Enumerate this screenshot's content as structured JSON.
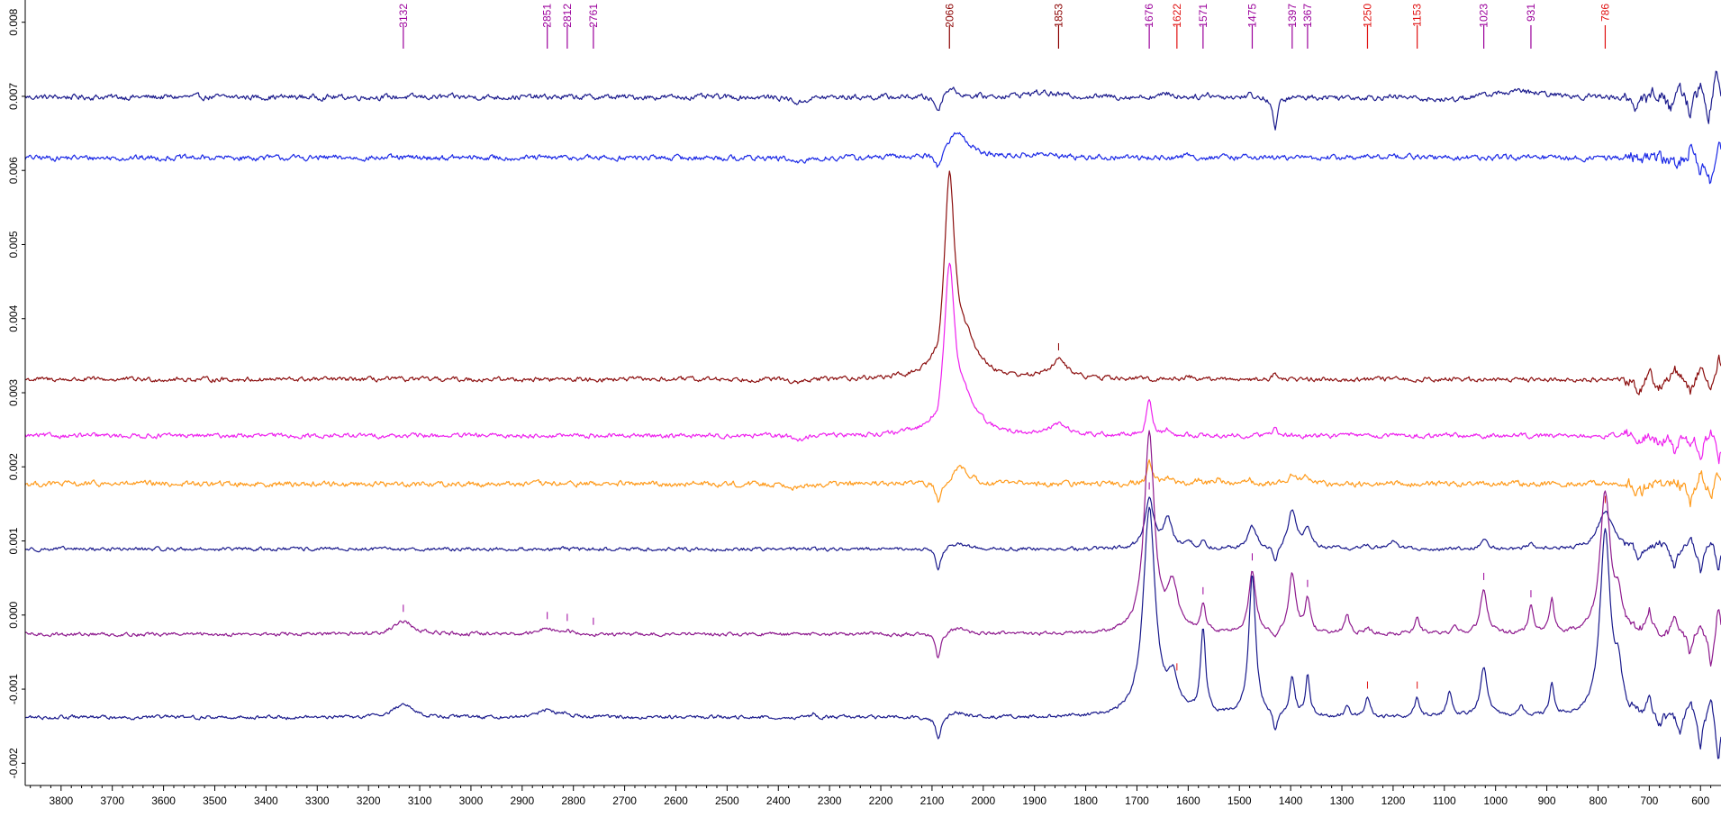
{
  "chart_data": {
    "type": "line",
    "title": "",
    "xlabel": "",
    "ylabel": "",
    "xlim": [
      3870,
      560
    ],
    "ylim": [
      -0.0023,
      0.0083
    ],
    "x_ticks": [
      3800,
      3700,
      3600,
      3500,
      3400,
      3300,
      3200,
      3100,
      3000,
      2900,
      2800,
      2700,
      2600,
      2500,
      2400,
      2300,
      2200,
      2100,
      2000,
      1900,
      1800,
      1700,
      1600,
      1500,
      1400,
      1300,
      1200,
      1100,
      1000,
      900,
      800,
      700,
      600
    ],
    "y_ticks": [
      0.008,
      0.007,
      0.006,
      0.005,
      0.004,
      0.003,
      0.002,
      0.001,
      0.0,
      -0.001,
      -0.002
    ],
    "y_tick_labels": [
      "0.008",
      "0.007",
      "0.006",
      "0.005",
      "0.004",
      "0.003",
      "0.002",
      "0.001",
      "0.000",
      "-0.001",
      "-0.002"
    ],
    "x_direction": "reversed",
    "legend": "none",
    "grid": false,
    "peak_labels": [
      {
        "x": 3132,
        "label": "3132",
        "color": "#9b009b"
      },
      {
        "x": 2851,
        "label": "2851",
        "color": "#9b009b"
      },
      {
        "x": 2812,
        "label": "2812",
        "color": "#9b009b"
      },
      {
        "x": 2761,
        "label": "2761",
        "color": "#9b009b"
      },
      {
        "x": 2066,
        "label": "2066",
        "color": "#8b0000"
      },
      {
        "x": 1853,
        "label": "1853",
        "color": "#8b0000"
      },
      {
        "x": 1676,
        "label": "1676",
        "color": "#9b009b"
      },
      {
        "x": 1622,
        "label": "1622",
        "color": "#e01010"
      },
      {
        "x": 1571,
        "label": "1571",
        "color": "#9b009b"
      },
      {
        "x": 1475,
        "label": "1475",
        "color": "#9b009b"
      },
      {
        "x": 1397,
        "label": "1397",
        "color": "#9b009b"
      },
      {
        "x": 1367,
        "label": "1367",
        "color": "#9b009b"
      },
      {
        "x": 1250,
        "label": "1250",
        "color": "#e01010"
      },
      {
        "x": 1153,
        "label": "1153",
        "color": "#e01010"
      },
      {
        "x": 1023,
        "label": "1023",
        "color": "#9b009b"
      },
      {
        "x": 931,
        "label": "931",
        "color": "#9b009b"
      },
      {
        "x": 786,
        "label": "786",
        "color": "#e01010"
      }
    ],
    "series": [
      {
        "color": "#1a1a8c",
        "baseline": 0.00699,
        "noise": 3e-05,
        "features": [
          [
            2360,
            -8e-05,
            14
          ],
          [
            2088,
            -0.00022,
            8
          ],
          [
            2066,
            0.00014,
            16
          ],
          [
            1890,
            6e-05,
            40
          ],
          [
            1430,
            -0.00045,
            5
          ],
          [
            1640,
            5e-05,
            10
          ],
          [
            1560,
            4e-05,
            8
          ],
          [
            1480,
            4e-05,
            6
          ],
          [
            1100,
            -5e-05,
            40
          ],
          [
            960,
            8e-05,
            60
          ],
          [
            720,
            -0.00012,
            12
          ],
          [
            690,
            0.0001,
            8
          ],
          [
            660,
            -0.00015,
            8
          ],
          [
            640,
            0.00018,
            6
          ],
          [
            620,
            -0.00022,
            6
          ],
          [
            600,
            0.00025,
            5
          ],
          [
            585,
            -0.00045,
            5
          ],
          [
            570,
            0.0004,
            5
          ]
        ]
      },
      {
        "color": "#1a28e6",
        "baseline": 0.00617,
        "noise": 3e-05,
        "features": [
          [
            2360,
            -8e-05,
            14
          ],
          [
            2088,
            -0.00022,
            8
          ],
          [
            2050,
            0.00035,
            25
          ],
          [
            1890,
            4e-05,
            40
          ],
          [
            1600,
            4e-05,
            8
          ],
          [
            1480,
            4e-05,
            6
          ],
          [
            1200,
            3e-05,
            30
          ],
          [
            700,
            6e-05,
            10
          ],
          [
            650,
            -0.00012,
            8
          ],
          [
            620,
            0.00016,
            6
          ],
          [
            600,
            -0.0002,
            5
          ],
          [
            580,
            -0.0004,
            5
          ],
          [
            565,
            0.0002,
            5
          ]
        ]
      },
      {
        "color": "#8b0e0e",
        "baseline": 0.00318,
        "noise": 2.5e-05,
        "features": [
          [
            2360,
            -6e-05,
            14
          ],
          [
            2088,
            -0.00018,
            6
          ],
          [
            2066,
            0.0026,
            12
          ],
          [
            2035,
            0.00045,
            30
          ],
          [
            1853,
            0.00025,
            20
          ],
          [
            1430,
            8e-05,
            5
          ],
          [
            1600,
            4e-05,
            8
          ],
          [
            720,
            -0.00015,
            8
          ],
          [
            700,
            0.00012,
            6
          ],
          [
            680,
            -0.0001,
            6
          ],
          [
            650,
            0.00015,
            6
          ],
          [
            620,
            -0.0002,
            5
          ],
          [
            600,
            0.0002,
            5
          ],
          [
            580,
            -0.00025,
            5
          ],
          [
            565,
            0.0003,
            5
          ]
        ]
      },
      {
        "color": "#ee22ee",
        "baseline": 0.00242,
        "noise": 2.5e-05,
        "features": [
          [
            2360,
            -6e-05,
            14
          ],
          [
            2088,
            -0.00018,
            6
          ],
          [
            2066,
            0.00215,
            12
          ],
          [
            2035,
            0.0004,
            30
          ],
          [
            1853,
            0.00015,
            20
          ],
          [
            1676,
            0.0005,
            6
          ],
          [
            1640,
            8e-05,
            6
          ],
          [
            1430,
            0.0001,
            5
          ],
          [
            750,
            6e-05,
            10
          ],
          [
            720,
            -0.00012,
            8
          ],
          [
            680,
            -0.0001,
            6
          ],
          [
            650,
            -0.0002,
            6
          ],
          [
            620,
            -0.00015,
            5
          ],
          [
            600,
            -0.0003,
            5
          ],
          [
            580,
            0.00015,
            5
          ],
          [
            565,
            -0.0004,
            5
          ]
        ]
      },
      {
        "color": "#ff9a1a",
        "baseline": 0.00177,
        "noise": 3e-05,
        "features": [
          [
            2360,
            -6e-05,
            14
          ],
          [
            2088,
            -0.00028,
            6
          ],
          [
            2045,
            0.00022,
            20
          ],
          [
            1676,
            0.00028,
            6
          ],
          [
            1640,
            0.0001,
            8
          ],
          [
            1580,
            6e-05,
            6
          ],
          [
            1540,
            7e-05,
            6
          ],
          [
            1480,
            6e-05,
            6
          ],
          [
            1397,
            0.00012,
            8
          ],
          [
            1367,
            0.0001,
            8
          ],
          [
            720,
            -0.00012,
            8
          ],
          [
            680,
            -8e-05,
            6
          ],
          [
            650,
            0.0001,
            6
          ],
          [
            620,
            -0.00025,
            5
          ],
          [
            600,
            0.00018,
            5
          ],
          [
            580,
            -0.00025,
            5
          ],
          [
            565,
            0.0002,
            5
          ]
        ]
      },
      {
        "color": "#1a1a8c",
        "baseline": 0.00089,
        "noise": 2e-05,
        "features": [
          [
            2088,
            -0.0003,
            6
          ],
          [
            2050,
            8e-05,
            20
          ],
          [
            1676,
            0.00065,
            10
          ],
          [
            1640,
            0.0004,
            10
          ],
          [
            1600,
            0.0001,
            8
          ],
          [
            1571,
            0.0001,
            6
          ],
          [
            1475,
            0.0003,
            10
          ],
          [
            1430,
            -0.00022,
            5
          ],
          [
            1397,
            0.0005,
            10
          ],
          [
            1367,
            0.00025,
            8
          ],
          [
            1250,
            6e-05,
            8
          ],
          [
            1200,
            0.00012,
            8
          ],
          [
            1023,
            0.00012,
            8
          ],
          [
            931,
            8e-05,
            6
          ],
          [
            786,
            0.0005,
            18
          ],
          [
            720,
            -0.00012,
            8
          ],
          [
            680,
            8e-05,
            6
          ],
          [
            650,
            -0.00025,
            6
          ],
          [
            620,
            0.00018,
            5
          ],
          [
            600,
            -0.00035,
            5
          ],
          [
            580,
            0.00015,
            5
          ],
          [
            565,
            -0.00025,
            5
          ]
        ]
      },
      {
        "color": "#8e1a8e",
        "baseline": -0.00026,
        "noise": 2e-05,
        "features": [
          [
            3132,
            0.00018,
            22
          ],
          [
            2851,
            8e-05,
            20
          ],
          [
            2812,
            4e-05,
            8
          ],
          [
            2088,
            -0.00035,
            6
          ],
          [
            2050,
            8e-05,
            20
          ],
          [
            1676,
            0.0027,
            12
          ],
          [
            1630,
            0.0006,
            12
          ],
          [
            1571,
            0.00035,
            6
          ],
          [
            1475,
            0.00085,
            8
          ],
          [
            1430,
            -0.00012,
            5
          ],
          [
            1397,
            0.0008,
            8
          ],
          [
            1367,
            0.00045,
            6
          ],
          [
            1290,
            0.00025,
            6
          ],
          [
            1250,
            8e-05,
            6
          ],
          [
            1153,
            0.00022,
            6
          ],
          [
            1080,
            8e-05,
            6
          ],
          [
            1023,
            0.0006,
            8
          ],
          [
            931,
            0.00035,
            6
          ],
          [
            890,
            0.00045,
            5
          ],
          [
            786,
            0.0019,
            12
          ],
          [
            760,
            0.0004,
            8
          ],
          [
            700,
            0.0003,
            6
          ],
          [
            680,
            -0.00015,
            6
          ],
          [
            650,
            0.00025,
            5
          ],
          [
            620,
            -0.0003,
            5
          ],
          [
            600,
            0.0002,
            5
          ],
          [
            580,
            -0.0005,
            5
          ],
          [
            565,
            0.0004,
            5
          ]
        ]
      },
      {
        "color": "#1a1a8c",
        "baseline": -0.00138,
        "noise": 2e-05,
        "features": [
          [
            3132,
            0.00018,
            22
          ],
          [
            2851,
            0.0001,
            20
          ],
          [
            2812,
            5e-05,
            8
          ],
          [
            2330,
            5e-05,
            5
          ],
          [
            2088,
            -0.0003,
            6
          ],
          [
            2050,
            6e-05,
            20
          ],
          [
            1676,
            0.0028,
            14
          ],
          [
            1630,
            0.00045,
            12
          ],
          [
            1571,
            0.0011,
            6
          ],
          [
            1475,
            0.0019,
            8
          ],
          [
            1430,
            -0.00025,
            5
          ],
          [
            1397,
            0.0005,
            6
          ],
          [
            1367,
            0.00055,
            5
          ],
          [
            1290,
            0.00012,
            6
          ],
          [
            1250,
            0.00025,
            6
          ],
          [
            1153,
            0.00025,
            6
          ],
          [
            1090,
            0.00035,
            6
          ],
          [
            1023,
            0.00065,
            8
          ],
          [
            950,
            0.00015,
            6
          ],
          [
            890,
            0.00045,
            5
          ],
          [
            786,
            0.0025,
            12
          ],
          [
            760,
            0.0005,
            8
          ],
          [
            700,
            0.00025,
            6
          ],
          [
            680,
            -0.00015,
            6
          ],
          [
            640,
            -0.0002,
            5
          ],
          [
            620,
            0.00025,
            5
          ],
          [
            600,
            -0.0004,
            5
          ],
          [
            580,
            0.00035,
            5
          ],
          [
            565,
            -0.0006,
            5
          ]
        ]
      }
    ]
  }
}
